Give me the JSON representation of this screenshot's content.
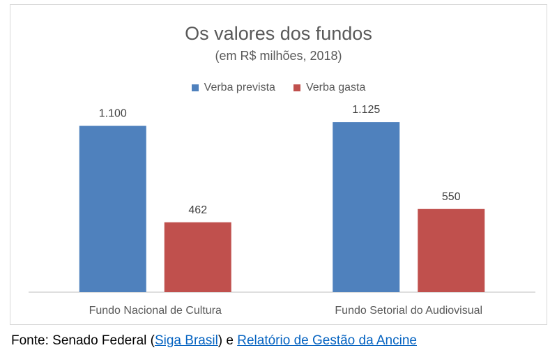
{
  "colors": {
    "series_1": "#4f81bd",
    "series_2": "#c0504d",
    "axis": "#bfbfbf",
    "text": "#595959",
    "link": "#0563c1"
  },
  "chart_data": {
    "type": "bar",
    "title": "Os valores dos fundos",
    "subtitle": "(em R$ milhões, 2018)",
    "categories": [
      "Fundo Nacional de Cultura",
      "Fundo Setorial do Audiovisual"
    ],
    "series": [
      {
        "name": "Verba prevista",
        "values": [
          1100,
          1125
        ],
        "labels": [
          "1.100",
          "1.125"
        ]
      },
      {
        "name": "Verba gasta",
        "values": [
          462,
          550
        ],
        "labels": [
          "462",
          "550"
        ]
      }
    ],
    "ylim": [
      0,
      1250
    ],
    "grid": false,
    "legend": "top",
    "data_labels": true
  },
  "source": {
    "prefix": "Fonte: Senado Federal (",
    "link1": "Siga Brasil",
    "middle": ") e ",
    "link2": "Relatório de Gestão da Ancine"
  }
}
